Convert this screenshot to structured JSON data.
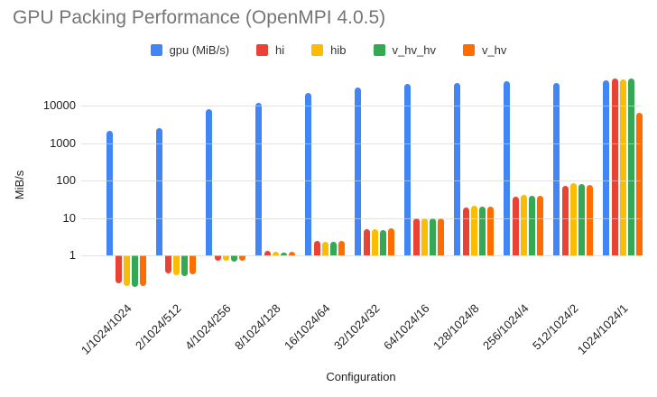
{
  "title": "GPU Packing Performance (OpenMPI 4.0.5)",
  "chart_data": {
    "type": "bar",
    "title": "GPU Packing Performance (OpenMPI 4.0.5)",
    "xlabel": "Configuration",
    "ylabel": "MiB/s",
    "log_scale": true,
    "grid": "horizontal",
    "legend_position": "top",
    "y_ticks": [
      1,
      10,
      100,
      1000,
      10000
    ],
    "ylim": [
      0.1,
      50000
    ],
    "categories": [
      "1/1024/1024",
      "2/1024/512",
      "4/1024/256",
      "8/1024/128",
      "16/1024/64",
      "32/1024/32",
      "64/1024/16",
      "128/1024/8",
      "256/1024/4",
      "512/1024/2",
      "1024/1024/1"
    ],
    "series": [
      {
        "name": "gpu (MiB/s)",
        "color": "#4285F4",
        "values": [
          2100,
          2500,
          8000,
          12000,
          22000,
          30000,
          38000,
          40000,
          45000,
          40000,
          47000
        ]
      },
      {
        "name": "hi",
        "color": "#EA4335",
        "values": [
          0.18,
          0.33,
          0.7,
          1.3,
          2.4,
          5.0,
          9.7,
          19,
          37,
          72,
          52000
        ]
      },
      {
        "name": "hib",
        "color": "#FBBC04",
        "values": [
          0.15,
          0.29,
          0.7,
          1.25,
          2.3,
          4.9,
          10,
          21,
          41,
          84,
          50000
        ]
      },
      {
        "name": "v_hv_hv",
        "color": "#34A853",
        "values": [
          0.14,
          0.28,
          0.68,
          1.18,
          2.3,
          4.7,
          9.8,
          20,
          39,
          80,
          52000
        ]
      },
      {
        "name": "v_hv",
        "color": "#FF6D01",
        "values": [
          0.15,
          0.31,
          0.7,
          1.22,
          2.4,
          5.2,
          10,
          20,
          40,
          76,
          6400
        ]
      }
    ]
  }
}
